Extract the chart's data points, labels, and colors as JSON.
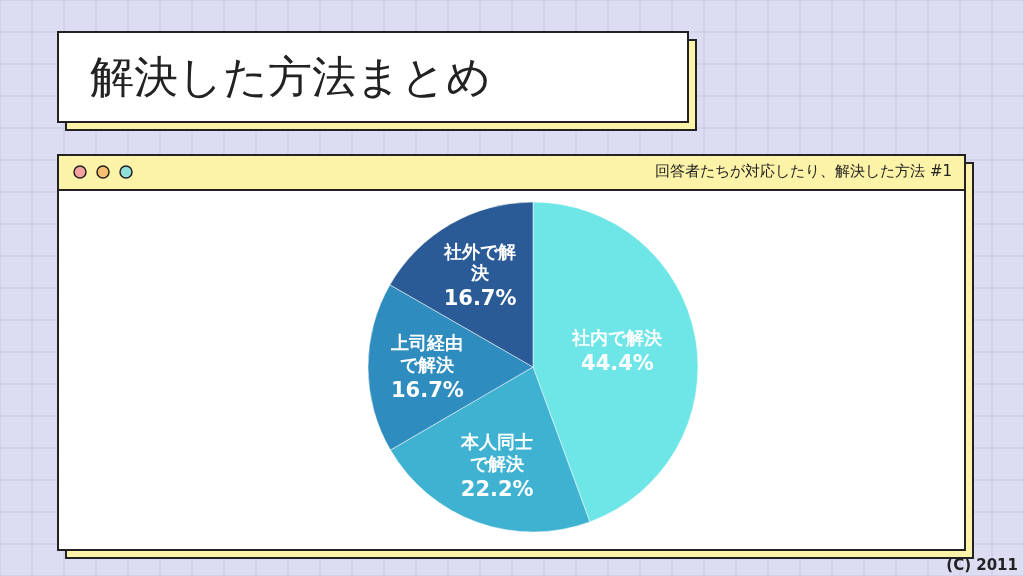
{
  "chart_data": {
    "type": "pie",
    "title": "解決した方法まとめ",
    "subtitle": "回答者たちが対応したり、解決した方法 #1",
    "categories": [
      "社内で解決",
      "本人同士で解決",
      "上司経由で解決",
      "社外で解決"
    ],
    "values": [
      44.4,
      22.2,
      16.7,
      16.7
    ],
    "colors": [
      "#6ee6e8",
      "#3fb2d2",
      "#2e8cbf",
      "#2a5b96"
    ],
    "value_labels": [
      "44.4%",
      "22.2%",
      "16.7%",
      "16.7%"
    ],
    "annotations": [
      "(C) 2011"
    ]
  }
}
